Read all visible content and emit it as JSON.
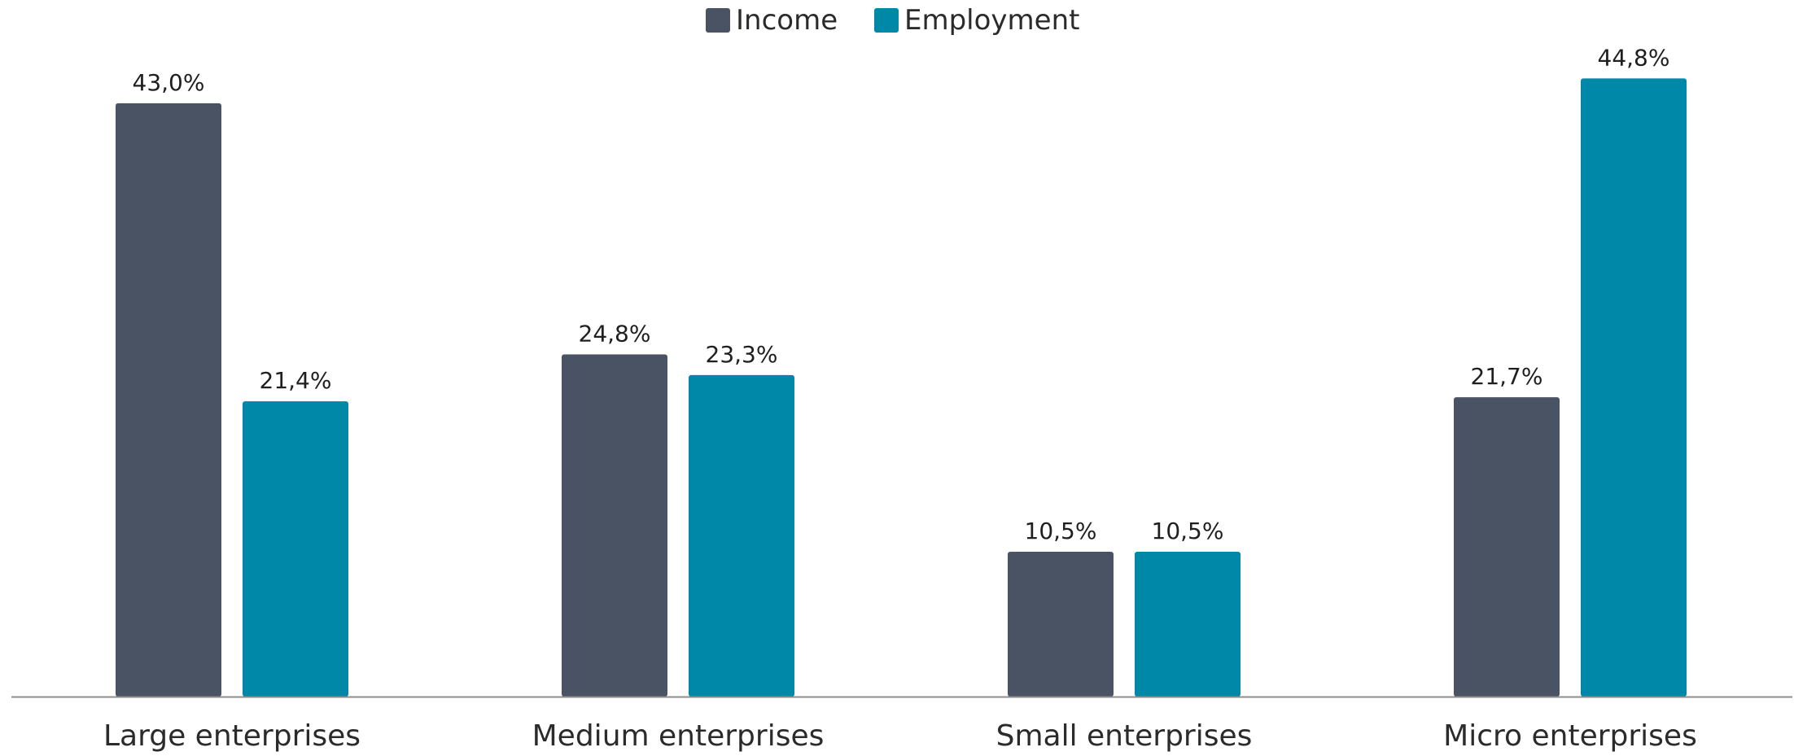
{
  "chart_data": {
    "type": "bar",
    "categories": [
      "Large enterprises",
      "Medium enterprises",
      "Small enterprises",
      "Micro enterprises"
    ],
    "series": [
      {
        "name": "Income",
        "values": [
          43.0,
          24.8,
          10.5,
          21.7
        ],
        "labels": [
          "43,0%",
          "24,8%",
          "10,5%",
          "21,7%"
        ],
        "color": "#4a5363"
      },
      {
        "name": "Employment",
        "values": [
          21.4,
          23.3,
          10.5,
          44.8
        ],
        "labels": [
          "21,4%",
          "23,3%",
          "10,5%",
          "44,8%"
        ],
        "color": "#0088a8"
      }
    ],
    "ylim": [
      0,
      45
    ],
    "grid": false,
    "legend_position": "top-center",
    "axis_color": "#8c8c8c"
  }
}
